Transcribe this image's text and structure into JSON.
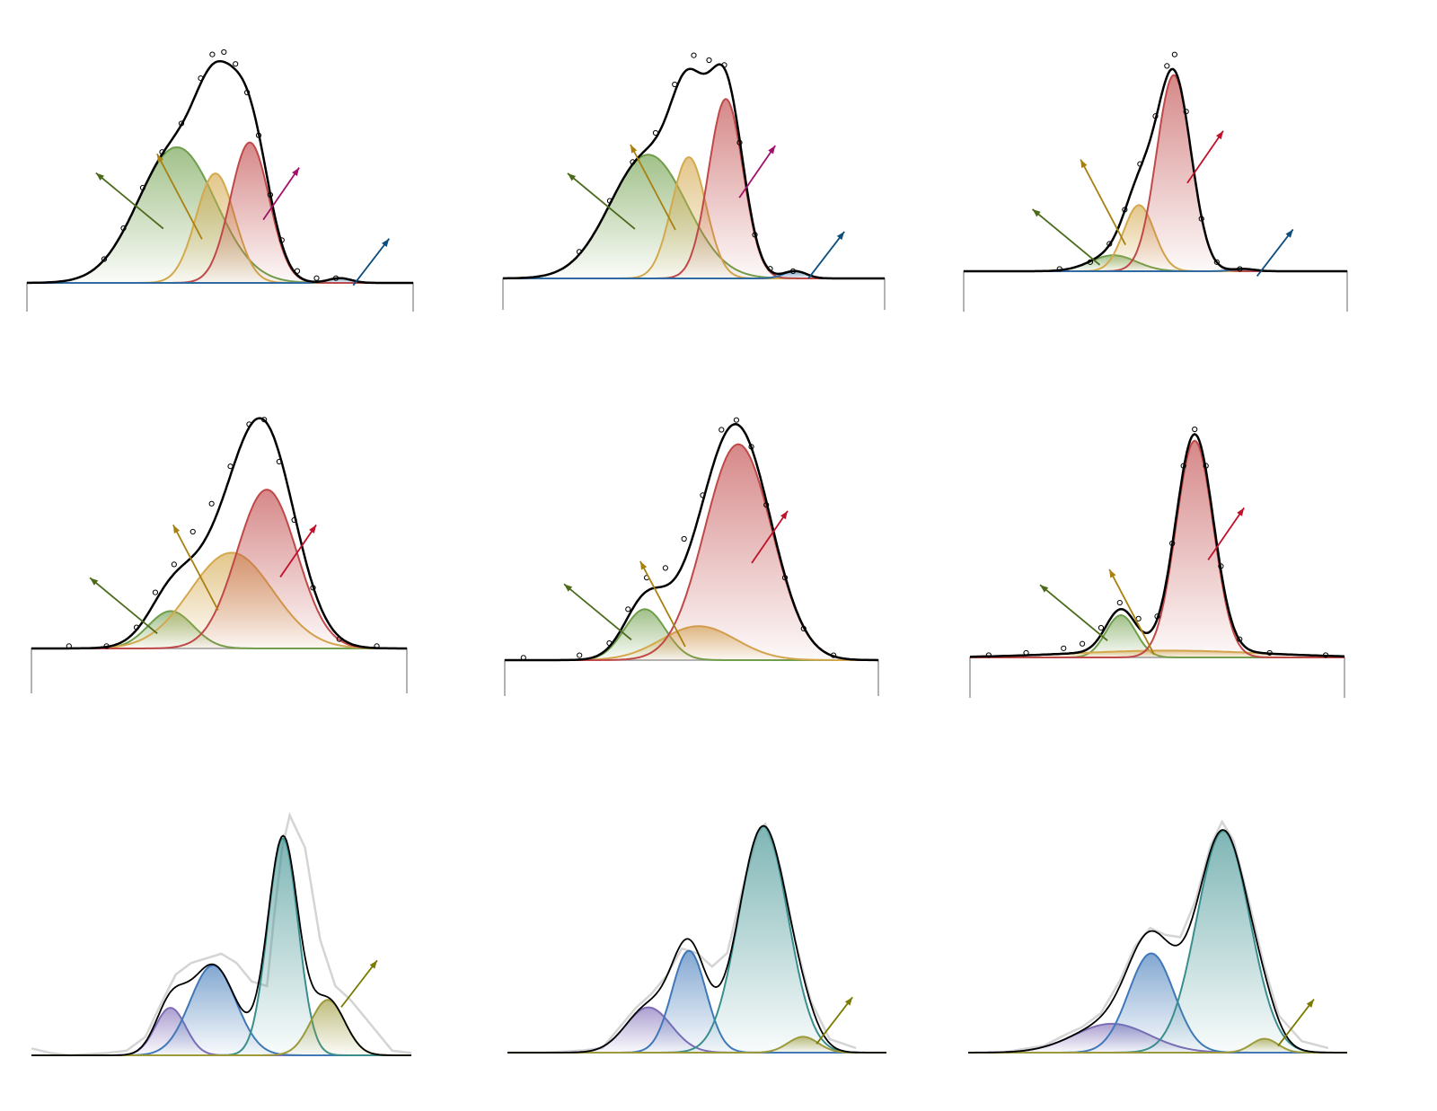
{
  "chart_data": [
    {
      "type": "peak-fit",
      "xlim": [
        0,
        100
      ],
      "ylim": [
        0,
        100
      ],
      "frame": true,
      "observed_style": "points",
      "observed": {
        "x": [
          20,
          25,
          30,
          35,
          40,
          45,
          48,
          51,
          54,
          57,
          60,
          63,
          66,
          70,
          75,
          80
        ],
        "y": [
          10,
          23,
          40,
          55,
          67,
          86,
          96,
          97,
          92,
          80,
          62,
          37,
          18,
          5,
          2,
          2
        ]
      },
      "components": [
        {
          "color": "#6f9f4a",
          "center": 38.8,
          "height": 57,
          "width": 10,
          "arrow_color": "#4b6b1b"
        },
        {
          "color": "#d4a84c",
          "center": 48.8,
          "height": 46,
          "width": 5,
          "arrow_color": "#a8800f"
        },
        {
          "color": "#c04848",
          "center": 57.7,
          "height": 59,
          "width": 5,
          "arrow_color": "#a0106a"
        },
        {
          "color": "#2f6aa0",
          "center": 81,
          "height": 2,
          "width": 3,
          "arrow_color": "#0d4d7d"
        }
      ]
    },
    {
      "type": "peak-fit",
      "xlim": [
        0,
        100
      ],
      "ylim": [
        0,
        100
      ],
      "frame": true,
      "observed_style": "points",
      "observed": {
        "x": [
          20,
          28,
          34,
          40,
          45,
          50,
          54,
          58,
          62,
          66,
          70,
          76
        ],
        "y": [
          11,
          32,
          48,
          60,
          80,
          92,
          90,
          88,
          56,
          18,
          4,
          3
        ]
      },
      "components": [
        {
          "color": "#6f9f4a",
          "center": 38.1,
          "height": 51,
          "width": 10,
          "arrow_color": "#4b6b1b"
        },
        {
          "color": "#d4a84c",
          "center": 48.7,
          "height": 50,
          "width": 4.5,
          "arrow_color": "#a8800f"
        },
        {
          "color": "#c04848",
          "center": 58.4,
          "height": 74,
          "width": 4.5,
          "arrow_color": "#a0106a"
        },
        {
          "color": "#2f6aa0",
          "center": 76.5,
          "height": 3,
          "width": 3,
          "arrow_color": "#0d4d7d"
        }
      ]
    },
    {
      "type": "peak-fit",
      "xlim": [
        0,
        100
      ],
      "ylim": [
        0,
        100
      ],
      "frame": true,
      "observed_style": "points",
      "observed": {
        "x": [
          25,
          33,
          38,
          42,
          46,
          50,
          53,
          55,
          58,
          62,
          66,
          72
        ],
        "y": [
          1,
          4,
          12,
          27,
          47,
          68,
          90,
          95,
          70,
          23,
          4,
          1
        ]
      },
      "components": [
        {
          "color": "#6f9f4a",
          "center": 39,
          "height": 7,
          "width": 6,
          "arrow_color": "#4b6b1b"
        },
        {
          "color": "#d4a84c",
          "center": 45.7,
          "height": 29,
          "width": 4,
          "arrow_color": "#a8800f"
        },
        {
          "color": "#c04848",
          "center": 54.8,
          "height": 86,
          "width": 4.5,
          "arrow_color": "#c0102a"
        },
        {
          "color": "#2f6aa0",
          "center": 73,
          "height": 1,
          "width": 3,
          "arrow_color": "#0d4d7d"
        }
      ]
    },
    {
      "type": "peak-fit",
      "xlim": [
        0,
        100
      ],
      "ylim": [
        0,
        100
      ],
      "frame": true,
      "observed_style": "points",
      "observed": {
        "x": [
          10,
          20,
          28,
          33,
          38,
          43,
          48,
          53,
          58,
          62,
          66,
          70,
          75,
          82,
          92
        ],
        "y": [
          1,
          1,
          9,
          24,
          36,
          50,
          62,
          78,
          96,
          98,
          80,
          55,
          26,
          4,
          1
        ]
      },
      "components": [
        {
          "color": "#6f9f4a",
          "center": 37.1,
          "height": 16,
          "width": 6,
          "arrow_color": "#4b6b1b"
        },
        {
          "color": "#d4a84c",
          "center": 53.3,
          "height": 41,
          "width": 11,
          "arrow_color": "#a8800f"
        },
        {
          "color": "#c04848",
          "center": 62.7,
          "height": 68,
          "width": 8,
          "arrow_color": "#c0102a"
        }
      ]
    },
    {
      "type": "peak-fit",
      "xlim": [
        0,
        100
      ],
      "ylim": [
        0,
        100
      ],
      "frame": true,
      "observed_style": "points",
      "observed": {
        "x": [
          5,
          20,
          28,
          33,
          38,
          43,
          48,
          53,
          58,
          62,
          66,
          70,
          75,
          80,
          88
        ],
        "y": [
          1,
          2,
          7,
          21,
          34,
          38,
          50,
          68,
          95,
          99,
          88,
          64,
          34,
          13,
          2
        ]
      },
      "components": [
        {
          "color": "#6f9f4a",
          "center": 37.5,
          "height": 21,
          "width": 5.5,
          "arrow_color": "#4b6b1b"
        },
        {
          "color": "#d4a84c",
          "center": 51.9,
          "height": 14,
          "width": 10,
          "arrow_color": "#a8800f"
        },
        {
          "color": "#c04848",
          "center": 62.5,
          "height": 89,
          "width": 9,
          "arrow_color": "#c0102a"
        }
      ]
    },
    {
      "type": "peak-fit",
      "xlim": [
        0,
        100
      ],
      "ylim": [
        0,
        100
      ],
      "frame": true,
      "observed_style": "points",
      "observed": {
        "x": [
          5,
          15,
          25,
          30,
          35,
          40,
          45,
          50,
          54,
          57,
          60,
          63,
          67,
          72,
          80,
          95
        ],
        "y": [
          1,
          2,
          4,
          6,
          13,
          24,
          17,
          18,
          50,
          84,
          100,
          84,
          40,
          8,
          2,
          1
        ]
      },
      "components": [
        {
          "color": "#6f9f4a",
          "center": 40.3,
          "height": 18.5,
          "width": 4,
          "arrow_color": "#4b6b1b"
        },
        {
          "color": "#d4a84c",
          "center": 52.8,
          "height": 3,
          "width": 25,
          "arrow_color": "#a8800f"
        },
        {
          "color": "#c04848",
          "center": 60,
          "height": 95,
          "width": 5,
          "arrow_color": "#c0102a"
        }
      ]
    },
    {
      "type": "peak-fit",
      "xlim": [
        0,
        100
      ],
      "ylim": [
        0,
        100
      ],
      "frame": false,
      "observed_style": "line",
      "observed": {
        "x": [
          0,
          5,
          10,
          20,
          25,
          30,
          34,
          38,
          42,
          46,
          50,
          54,
          58,
          62,
          64,
          66,
          68,
          72,
          76,
          80,
          84,
          90,
          95,
          100
        ],
        "y": [
          3,
          1,
          0,
          1,
          2,
          8,
          22,
          35,
          40,
          42,
          44,
          40,
          32,
          30,
          62,
          90,
          104,
          90,
          50,
          30,
          24,
          12,
          2,
          1
        ]
      },
      "components": [
        {
          "color": "#7f6cb6",
          "center": 36.6,
          "height": 20.6,
          "width": 4
        },
        {
          "color": "#3f78b8",
          "center": 47.8,
          "height": 39,
          "width": 6
        },
        {
          "color": "#3a8e8e",
          "center": 66.2,
          "height": 94,
          "width": 4
        },
        {
          "color": "#9c9a3a",
          "center": 78,
          "height": 24,
          "width": 4.5,
          "arrow_color": "#7a7a00"
        }
      ]
    },
    {
      "type": "peak-fit",
      "xlim": [
        0,
        100
      ],
      "ylim": [
        0,
        100
      ],
      "frame": false,
      "observed_style": "line",
      "observed": {
        "x": [
          0,
          10,
          20,
          25,
          30,
          34,
          38,
          42,
          46,
          50,
          54,
          58,
          62,
          66,
          68,
          72,
          76,
          80,
          85,
          92
        ],
        "y": [
          0,
          0,
          1,
          2,
          12,
          20,
          26,
          34,
          46,
          44,
          38,
          44,
          72,
          97,
          101,
          82,
          49,
          23,
          6,
          2
        ]
      },
      "components": [
        {
          "color": "#7f6cb6",
          "center": 37.2,
          "height": 20,
          "width": 6
        },
        {
          "color": "#3f78b8",
          "center": 47.9,
          "height": 45,
          "width": 4.5
        },
        {
          "color": "#3a8e8e",
          "center": 67.5,
          "height": 100,
          "width": 6.5
        },
        {
          "color": "#9c9a3a",
          "center": 78,
          "height": 7,
          "width": 4,
          "arrow_color": "#7a7a00"
        }
      ]
    },
    {
      "type": "peak-fit",
      "xlim": [
        0,
        100
      ],
      "ylim": [
        0,
        100
      ],
      "frame": false,
      "observed_style": "line",
      "observed": {
        "x": [
          10,
          20,
          26,
          30,
          35,
          40,
          44,
          48,
          52,
          56,
          60,
          64,
          67,
          70,
          74,
          78,
          82,
          88,
          95
        ],
        "y": [
          0.3,
          3,
          8,
          11,
          17,
          31,
          46,
          54,
          51,
          50,
          66,
          90,
          100,
          92,
          66,
          38,
          16,
          5,
          2
        ]
      },
      "components": [
        {
          "color": "#7f6cb6",
          "center": 37.9,
          "height": 12.5,
          "width": 10
        },
        {
          "color": "#3f78b8",
          "center": 48.3,
          "height": 43,
          "width": 6
        },
        {
          "color": "#3a8e8e",
          "center": 67.3,
          "height": 96,
          "width": 7
        },
        {
          "color": "#9c9a3a",
          "center": 78.2,
          "height": 6,
          "width": 3.5,
          "arrow_color": "#7a7a00"
        }
      ]
    }
  ]
}
